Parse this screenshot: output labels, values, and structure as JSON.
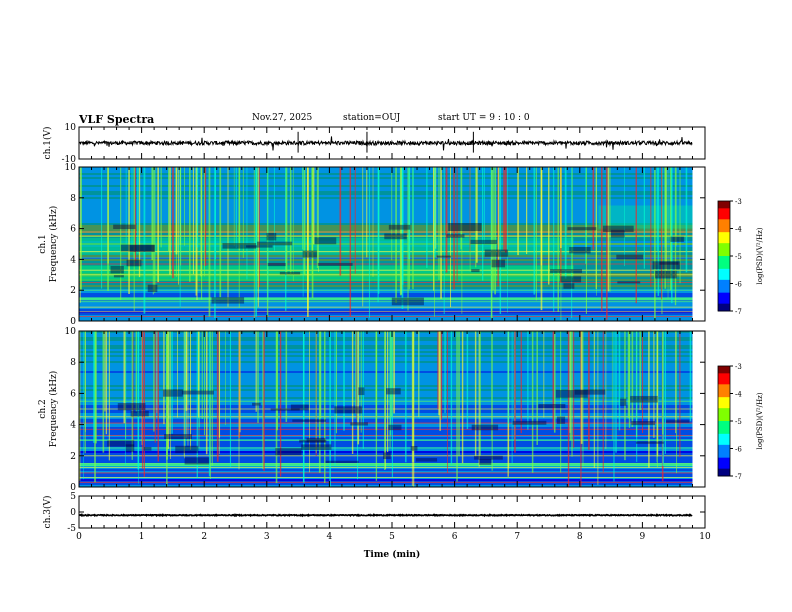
{
  "header": {
    "title": "VLF Spectra",
    "date": "Nov.27, 2025",
    "station": "station=OUJ",
    "start": "start  UT  =   9  : 10 : 0"
  },
  "colors": {
    "colormap": [
      "#000080",
      "#0000ff",
      "#0080ff",
      "#00ffff",
      "#00ff80",
      "#80ff00",
      "#ffff00",
      "#ff8000",
      "#ff0000",
      "#800000"
    ],
    "waveform": "#000000",
    "axes": "#000000",
    "background": "#ffffff"
  },
  "chart_data": [
    {
      "type": "line",
      "name": "ch1-waveform",
      "ylabel": "ch.1(V)",
      "ylim": [
        -10,
        10
      ],
      "yticks": [
        10,
        -10
      ],
      "xlim": [
        0,
        10
      ],
      "baseline": 0,
      "noise_amplitude": 1.2
    },
    {
      "type": "heatmap",
      "name": "ch1-spectrogram",
      "ylabel_top": "ch.1",
      "ylabel_bottom": "Frequency (kHz)",
      "ylim": [
        0,
        10
      ],
      "yticks": [
        0,
        2,
        4,
        6,
        8,
        10
      ],
      "xlim": [
        0,
        10
      ],
      "colorbar": {
        "label": "log(PSD)(V²/Hz)",
        "range": [
          -7,
          -3
        ],
        "ticks": [
          -3,
          -4,
          -5,
          -6,
          -7
        ]
      }
    },
    {
      "type": "heatmap",
      "name": "ch2-spectrogram",
      "ylabel_top": "ch.2",
      "ylabel_bottom": "Frequency (kHz)",
      "ylim": [
        0,
        10
      ],
      "yticks": [
        0,
        2,
        4,
        6,
        8,
        10
      ],
      "xlim": [
        0,
        10
      ],
      "colorbar": {
        "label": "log(PSD)(V²/Hz)",
        "range": [
          -7,
          -3
        ],
        "ticks": [
          -3,
          -4,
          -5,
          -6,
          -7
        ]
      }
    },
    {
      "type": "line",
      "name": "ch3-waveform",
      "ylabel": "ch.3(V)",
      "ylim": [
        -5,
        5
      ],
      "yticks": [
        5,
        0,
        -5
      ],
      "xlim": [
        0,
        10
      ],
      "baseline": -1,
      "noise_amplitude": 0.15
    }
  ],
  "xaxis": {
    "label": "Time (min)",
    "ticks": [
      0,
      1,
      2,
      3,
      4,
      5,
      6,
      7,
      8,
      9,
      10
    ],
    "data_end": 9.8
  }
}
